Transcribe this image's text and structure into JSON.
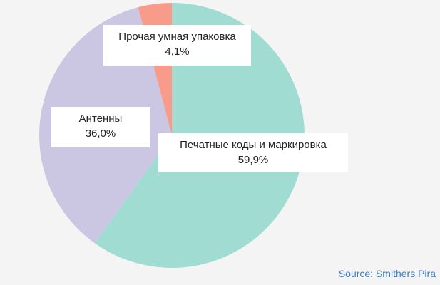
{
  "chart_data": {
    "type": "pie",
    "title": "",
    "slices": [
      {
        "label": "Печатные коды и маркировка",
        "value": 59.9,
        "value_label": "59,9%",
        "color": "#a0dcd2"
      },
      {
        "label": "Антенны",
        "value": 36.0,
        "value_label": "36,0%",
        "color": "#cbc7e3"
      },
      {
        "label": "Прочая умная упаковка",
        "value": 4.1,
        "value_label": "4,1%",
        "color": "#f99b8a"
      }
    ],
    "start": "top",
    "direction": "clockwise"
  },
  "source": "Source: Smithers Pira"
}
